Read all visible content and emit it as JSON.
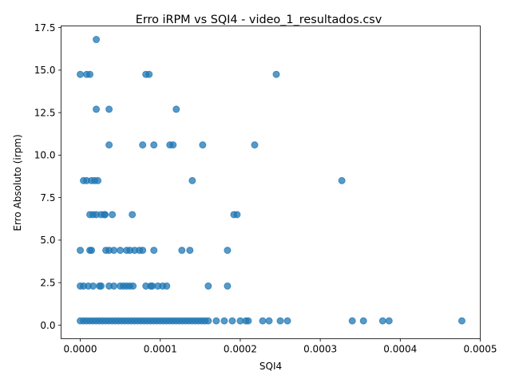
{
  "chart_data": {
    "type": "scatter",
    "title": "Erro iRPM vs SQI4 - video_1_resultados.csv",
    "xlabel": "SQI4",
    "ylabel": "Erro Absoluto (irpm)",
    "xlim": [
      -2.4e-05,
      0.0005
    ],
    "ylim": [
      -0.8,
      17.6
    ],
    "xticks": [
      {
        "value": 0.0,
        "label": "0.0000"
      },
      {
        "value": 0.0001,
        "label": "0.0001"
      },
      {
        "value": 0.0002,
        "label": "0.0002"
      },
      {
        "value": 0.0003,
        "label": "0.0003"
      },
      {
        "value": 0.0004,
        "label": "0.0004"
      },
      {
        "value": 0.0005,
        "label": "0.0005"
      }
    ],
    "yticks": [
      {
        "value": 0.0,
        "label": "0.0"
      },
      {
        "value": 2.5,
        "label": "2.5"
      },
      {
        "value": 5.0,
        "label": "5.0"
      },
      {
        "value": 7.5,
        "label": "7.5"
      },
      {
        "value": 10.0,
        "label": "10.0"
      },
      {
        "value": 12.5,
        "label": "12.5"
      },
      {
        "value": 15.0,
        "label": "15.0"
      },
      {
        "value": 17.5,
        "label": "17.5"
      }
    ],
    "grid": false,
    "color": "#1f77b4",
    "points": [
      [
        0.0,
        0.25
      ],
      [
        4e-06,
        0.25
      ],
      [
        8e-06,
        0.25
      ],
      [
        1.2e-05,
        0.25
      ],
      [
        1.6e-05,
        0.25
      ],
      [
        2e-05,
        0.25
      ],
      [
        2.4e-05,
        0.25
      ],
      [
        2.8e-05,
        0.25
      ],
      [
        3.2e-05,
        0.25
      ],
      [
        3.6e-05,
        0.25
      ],
      [
        4e-05,
        0.25
      ],
      [
        4.4e-05,
        0.25
      ],
      [
        4.8e-05,
        0.25
      ],
      [
        5.2e-05,
        0.25
      ],
      [
        5.6e-05,
        0.25
      ],
      [
        6e-05,
        0.25
      ],
      [
        6.4e-05,
        0.25
      ],
      [
        6.8e-05,
        0.25
      ],
      [
        7.2e-05,
        0.25
      ],
      [
        7.6e-05,
        0.25
      ],
      [
        8e-05,
        0.25
      ],
      [
        8.4e-05,
        0.25
      ],
      [
        8.8e-05,
        0.25
      ],
      [
        9.2e-05,
        0.25
      ],
      [
        9.6e-05,
        0.25
      ],
      [
        0.0001,
        0.25
      ],
      [
        0.000104,
        0.25
      ],
      [
        0.000108,
        0.25
      ],
      [
        0.000112,
        0.25
      ],
      [
        0.000116,
        0.25
      ],
      [
        0.00012,
        0.25
      ],
      [
        0.000124,
        0.25
      ],
      [
        0.000128,
        0.25
      ],
      [
        0.000132,
        0.25
      ],
      [
        0.000136,
        0.25
      ],
      [
        0.00014,
        0.25
      ],
      [
        0.000144,
        0.25
      ],
      [
        0.000148,
        0.25
      ],
      [
        0.000152,
        0.25
      ],
      [
        0.000156,
        0.25
      ],
      [
        0.00016,
        0.25
      ],
      [
        0.00017,
        0.25
      ],
      [
        0.00018,
        0.25
      ],
      [
        0.00019,
        0.25
      ],
      [
        0.0002,
        0.25
      ],
      [
        0.000207,
        0.25
      ],
      [
        0.00021,
        0.25
      ],
      [
        0.000228,
        0.25
      ],
      [
        0.000236,
        0.25
      ],
      [
        0.00025,
        0.25
      ],
      [
        0.000259,
        0.25
      ],
      [
        0.00034,
        0.25
      ],
      [
        0.000354,
        0.25
      ],
      [
        0.000378,
        0.25
      ],
      [
        0.000386,
        0.25
      ],
      [
        0.000477,
        0.25
      ],
      [
        0.0,
        2.3
      ],
      [
        4e-06,
        2.3
      ],
      [
        1e-05,
        2.3
      ],
      [
        1.6e-05,
        2.3
      ],
      [
        2.4e-05,
        2.3
      ],
      [
        2.6e-05,
        2.3
      ],
      [
        3.6e-05,
        2.3
      ],
      [
        4.2e-05,
        2.3
      ],
      [
        5e-05,
        2.3
      ],
      [
        5.4e-05,
        2.3
      ],
      [
        5.8e-05,
        2.3
      ],
      [
        6.2e-05,
        2.3
      ],
      [
        6.6e-05,
        2.3
      ],
      [
        8.2e-05,
        2.3
      ],
      [
        8.8e-05,
        2.3
      ],
      [
        9e-05,
        2.3
      ],
      [
        9.7e-05,
        2.3
      ],
      [
        0.000103,
        2.3
      ],
      [
        0.000108,
        2.3
      ],
      [
        0.00016,
        2.3
      ],
      [
        0.000184,
        2.3
      ],
      [
        0.0,
        4.4
      ],
      [
        1.2e-05,
        4.4
      ],
      [
        1.4e-05,
        4.4
      ],
      [
        3.2e-05,
        4.4
      ],
      [
        3.6e-05,
        4.4
      ],
      [
        4.2e-05,
        4.4
      ],
      [
        5e-05,
        4.4
      ],
      [
        5.8e-05,
        4.4
      ],
      [
        6.2e-05,
        4.4
      ],
      [
        6.8e-05,
        4.4
      ],
      [
        7.4e-05,
        4.4
      ],
      [
        7.8e-05,
        4.4
      ],
      [
        9.2e-05,
        4.4
      ],
      [
        0.000127,
        4.4
      ],
      [
        0.000137,
        4.4
      ],
      [
        0.000184,
        4.4
      ],
      [
        1.2e-05,
        6.5
      ],
      [
        1.6e-05,
        6.5
      ],
      [
        2e-05,
        6.5
      ],
      [
        2.6e-05,
        6.5
      ],
      [
        3e-05,
        6.5
      ],
      [
        3.1e-05,
        6.5
      ],
      [
        4e-05,
        6.5
      ],
      [
        6.5e-05,
        6.5
      ],
      [
        0.000192,
        6.5
      ],
      [
        0.000196,
        6.5
      ],
      [
        4e-06,
        8.5
      ],
      [
        8e-06,
        8.5
      ],
      [
        1.4e-05,
        8.5
      ],
      [
        1.8e-05,
        8.5
      ],
      [
        2.2e-05,
        8.5
      ],
      [
        0.00014,
        8.5
      ],
      [
        0.000327,
        8.5
      ],
      [
        3.6e-05,
        10.6
      ],
      [
        7.8e-05,
        10.6
      ],
      [
        9.2e-05,
        10.6
      ],
      [
        0.000112,
        10.6
      ],
      [
        0.000116,
        10.6
      ],
      [
        0.000153,
        10.6
      ],
      [
        0.000218,
        10.6
      ],
      [
        2e-05,
        12.7
      ],
      [
        3.6e-05,
        12.7
      ],
      [
        0.00012,
        12.7
      ],
      [
        0.0,
        14.75
      ],
      [
        8e-06,
        14.75
      ],
      [
        1.2e-05,
        14.75
      ],
      [
        8.2e-05,
        14.75
      ],
      [
        8.6e-05,
        14.75
      ],
      [
        0.000245,
        14.75
      ],
      [
        2e-05,
        16.8
      ]
    ]
  }
}
